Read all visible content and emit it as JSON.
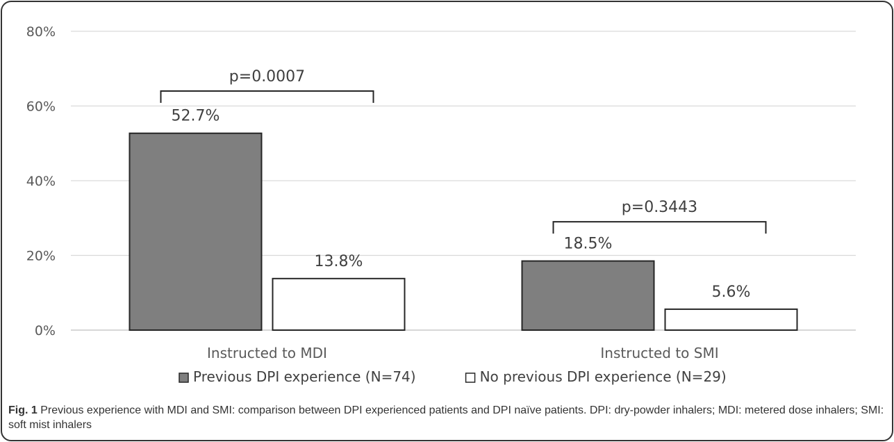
{
  "chart_data": {
    "type": "bar",
    "categories": [
      "Instructed to MDI",
      "Instructed to SMI"
    ],
    "series": [
      {
        "name": "Previous DPI experience (N=74)",
        "values": [
          52.7,
          18.5
        ],
        "labels": [
          "52.7%",
          "18.5%"
        ],
        "color": "#7f7f7f"
      },
      {
        "name": "No previous DPI experience (N=29)",
        "values": [
          13.8,
          5.6
        ],
        "labels": [
          "13.8%",
          "5.6%"
        ],
        "color": "#ffffff"
      }
    ],
    "ylim": [
      0,
      80
    ],
    "yticks": [
      "0%",
      "20%",
      "40%",
      "60%",
      "80%"
    ],
    "ytick_values": [
      0,
      20,
      40,
      60,
      80
    ],
    "grid": true,
    "legend_position": "bottom",
    "annotations": [
      {
        "text": "p=0.0007",
        "category": "Instructed to MDI",
        "bracket_level": 64
      },
      {
        "text": "p=0.3443",
        "category": "Instructed to SMI",
        "bracket_level": 29
      }
    ]
  },
  "caption": {
    "label": "Fig. 1",
    "text": "Previous experience with MDI and SMI: comparison between DPI experienced patients and DPI naïve patients. DPI: dry-powder inhalers; MDI: metered dose inhalers; SMI: soft mist inhalers"
  }
}
